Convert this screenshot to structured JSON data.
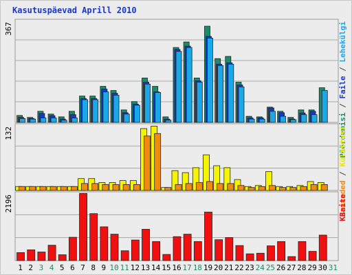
{
  "chart_data": {
    "type": "bar",
    "title": "Kasutuspäevad Aprill 2010",
    "categories": [
      "1",
      "2",
      "3",
      "4",
      "5",
      "6",
      "7",
      "8",
      "9",
      "10",
      "11",
      "12",
      "13",
      "14",
      "15",
      "16",
      "17",
      "18",
      "19",
      "20",
      "21",
      "22",
      "23",
      "24",
      "25",
      "26",
      "27",
      "28",
      "29",
      "30",
      "31"
    ],
    "weekend_days": [
      "3",
      "4",
      "10",
      "11",
      "17",
      "18",
      "24",
      "25",
      "31"
    ],
    "panels": [
      {
        "max_label": "367",
        "ylim": [
          0,
          367
        ],
        "grid": true,
        "series_labels": [
          {
            "text": "Pöördumisi",
            "color": "#1f8a6a"
          },
          {
            "text": "Faile",
            "color": "#1a37c8"
          },
          {
            "text": "Lehekülgi",
            "color": "#19a8e8"
          }
        ],
        "series": [
          {
            "name": "Pöördumisi",
            "color": "#1f8a6a",
            "values": [
              25,
              18,
              40,
              30,
              20,
              40,
              95,
              95,
              130,
              115,
              45,
              75,
              160,
              130,
              20,
              270,
              290,
              160,
              347,
              230,
              238,
              145,
              22,
              20,
              55,
              40,
              18,
              45,
              45,
              125,
              0
            ]
          },
          {
            "name": "Faile",
            "color": "#1a37c8",
            "values": [
              18,
              14,
              32,
              24,
              12,
              28,
              86,
              86,
              120,
              105,
              35,
              66,
              145,
              110,
              12,
              263,
              275,
              150,
              310,
              210,
              215,
              135,
              16,
              16,
              52,
              35,
              12,
              34,
              40,
              0,
              0
            ]
          },
          {
            "name": "Lehekülgi",
            "color": "#19a8e8",
            "values": [
              14,
              12,
              16,
              16,
              8,
              16,
              82,
              82,
              110,
              98,
              30,
              62,
              138,
              108,
              8,
              256,
              270,
              145,
              304,
              205,
              210,
              128,
              12,
              12,
              40,
              22,
              10,
              28,
              28,
              115,
              0
            ]
          }
        ]
      },
      {
        "max_label": "132",
        "ylim": [
          0,
          132
        ],
        "grid": true,
        "series_labels": [
          {
            "text": "Aruanded",
            "color": "#f08a10"
          },
          {
            "text": "Külastusi",
            "color": "#e8e800"
          }
        ],
        "series": [
          {
            "name": "Külastusi",
            "color": "#f5f500",
            "values": [
              8,
              8,
              8,
              8,
              8,
              8,
              24,
              24,
              16,
              16,
              20,
              20,
              125,
              130,
              6,
              40,
              36,
              46,
              72,
              50,
              46,
              22,
              8,
              10,
              38,
              8,
              8,
              10,
              18,
              16,
              0
            ]
          },
          {
            "name": "Aruanded",
            "color": "#f08a10",
            "values": [
              8,
              8,
              8,
              8,
              8,
              8,
              14,
              14,
              12,
              12,
              12,
              12,
              110,
              115,
              6,
              12,
              14,
              16,
              18,
              14,
              14,
              10,
              6,
              8,
              10,
              6,
              6,
              8,
              12,
              12,
              0
            ]
          }
        ]
      },
      {
        "max_label": "2196",
        "ylim": [
          0,
          2196
        ],
        "grid": true,
        "series_labels": [
          {
            "text": "KBaite",
            "color": "#e81010"
          }
        ],
        "series": [
          {
            "name": "KBaite",
            "color": "#f01010",
            "values": [
              260,
              350,
              280,
              500,
              190,
              760,
              2190,
              1530,
              1100,
              860,
              320,
              670,
              1020,
              620,
              200,
              780,
              860,
              620,
              1580,
              680,
              750,
              490,
              220,
              240,
              480,
              620,
              130,
              620,
              300,
              830,
              0
            ]
          }
        ]
      }
    ]
  }
}
